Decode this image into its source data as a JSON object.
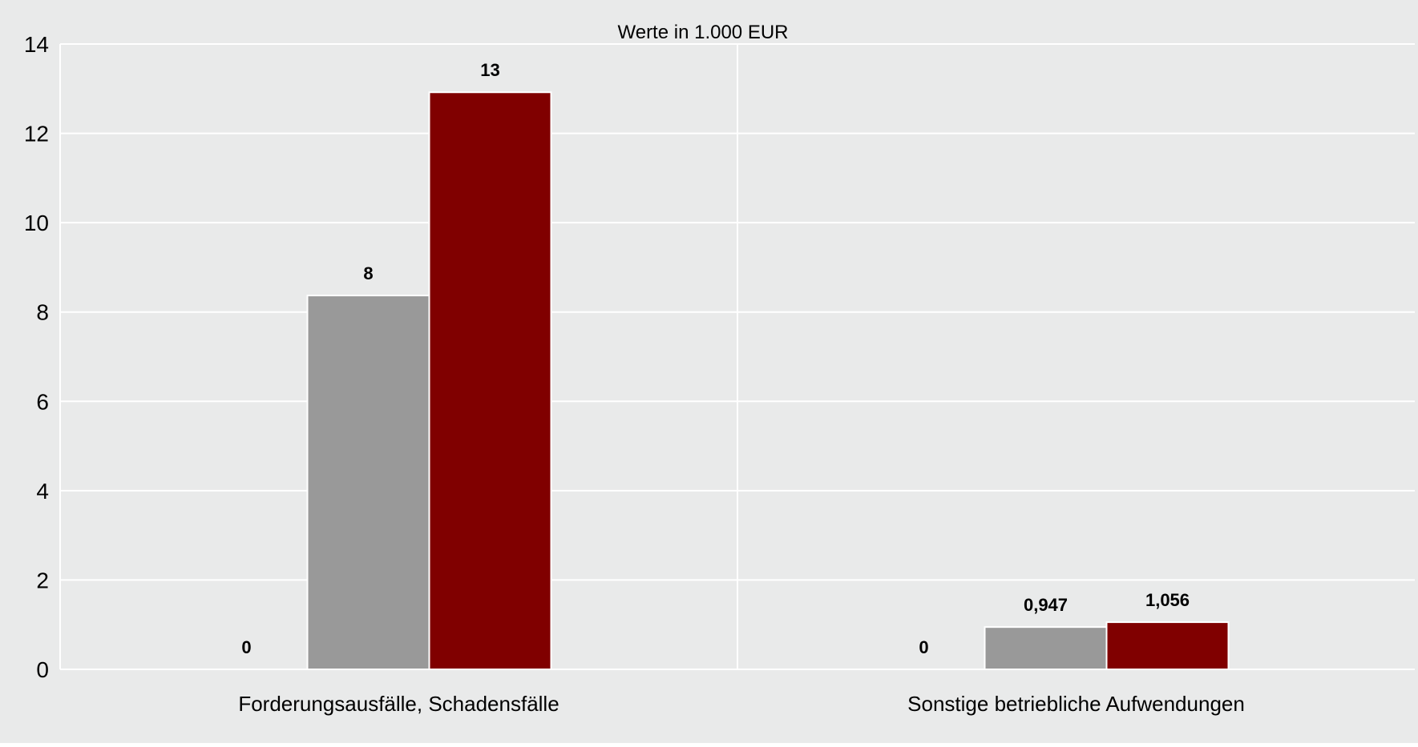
{
  "chart_data": {
    "type": "bar",
    "subtitle": "Werte in 1.000 EUR",
    "categories": [
      "Forderungsausfälle, Schadensfälle",
      "Sonstige betriebliche Aufwendungen"
    ],
    "series": [
      {
        "values": [
          0,
          0
        ],
        "labels": [
          "0",
          "0"
        ],
        "color": "#999999"
      },
      {
        "values": [
          8.37,
          0.947
        ],
        "labels": [
          "8",
          "0,947"
        ],
        "color": "#999999"
      },
      {
        "values": [
          12.92,
          1.056
        ],
        "labels": [
          "13",
          "1,056"
        ],
        "color": "#800000"
      }
    ],
    "ylim": [
      0,
      14
    ],
    "yticks": [
      "0",
      "2",
      "4",
      "6",
      "8",
      "10",
      "12",
      "14"
    ],
    "grid": true,
    "background": "#e9eaea",
    "gridColor": "#ffffff"
  }
}
